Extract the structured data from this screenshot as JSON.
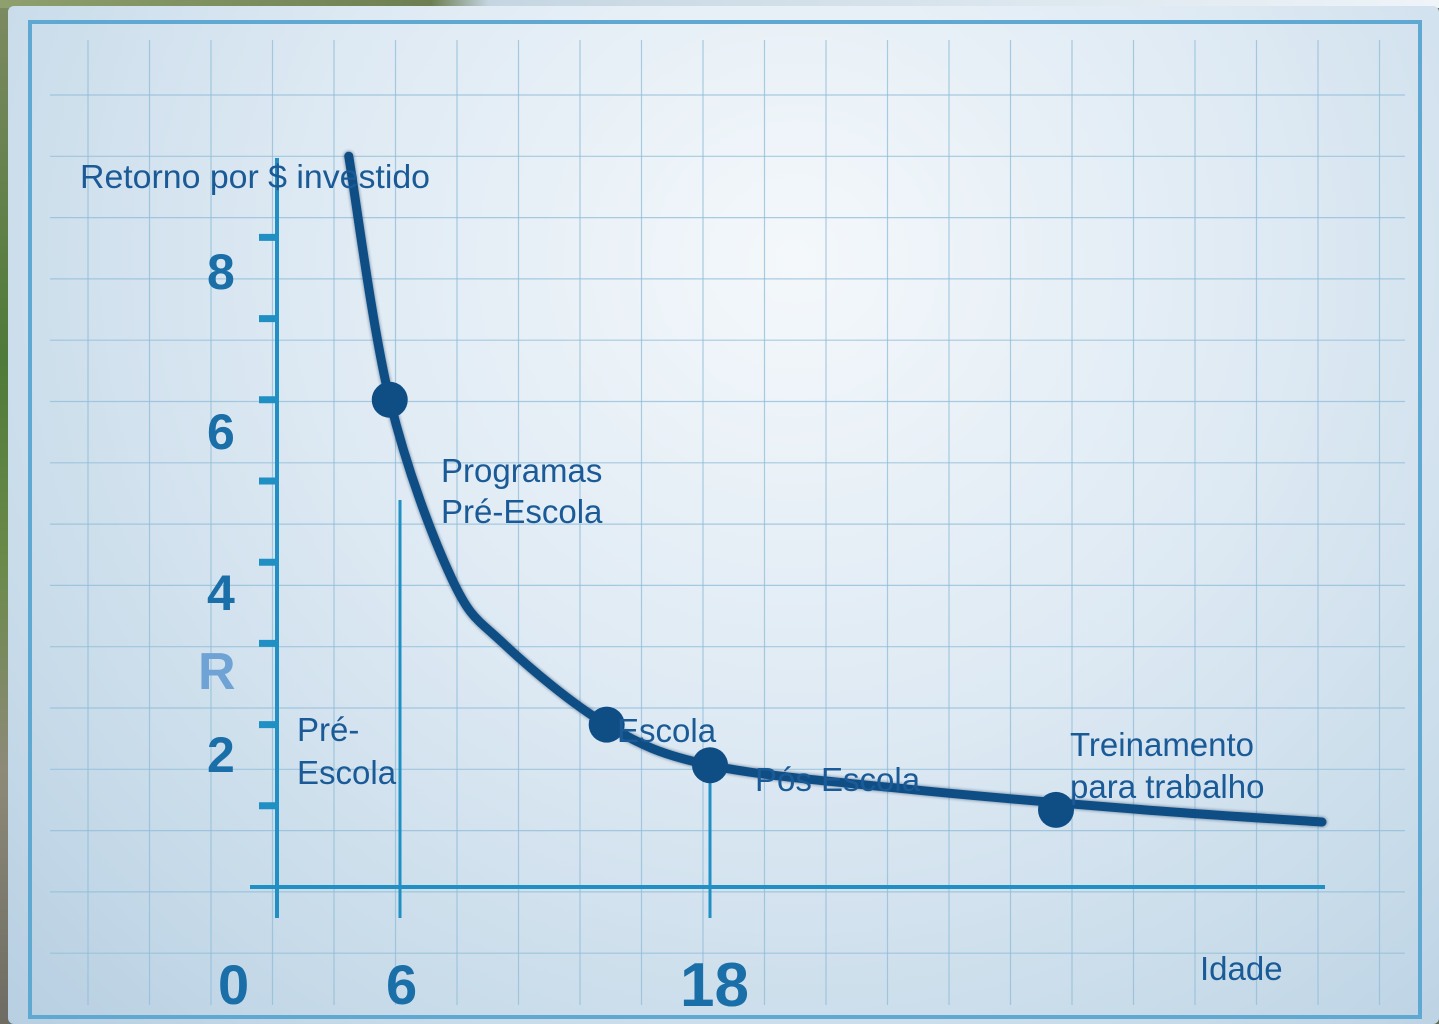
{
  "chart_data": {
    "type": "line",
    "title": "",
    "ylabel": "Retorno por $ investido",
    "xlabel": "Idade",
    "y_axis_marker": "R",
    "ylim": [
      0,
      9
    ],
    "y_ticks": [
      1,
      2,
      3,
      4,
      5,
      6,
      7,
      8
    ],
    "y_tick_labels": [
      "8",
      "6",
      "4",
      "2"
    ],
    "x_tick_labels": [
      "0",
      "6",
      "18"
    ],
    "opportunity_cost_line_y": 3.6,
    "curve": {
      "x": [
        3.5,
        5.5,
        8,
        10,
        14,
        18,
        25,
        35,
        45
      ],
      "y": [
        9.0,
        6.0,
        3.8,
        3.0,
        2.0,
        1.5,
        1.2,
        0.95,
        0.8
      ]
    },
    "points": [
      {
        "label": "Programas Pré-Escola",
        "x": 5.5,
        "y": 6.0
      },
      {
        "label": "Escola",
        "x": 14,
        "y": 2.0
      },
      {
        "label": "Pós Escola",
        "x": 18,
        "y": 1.5
      },
      {
        "label": "Treinamento para trabalho",
        "x": 30,
        "y": 0.95
      }
    ],
    "region_labels": {
      "pre_escola_line1": "Pré-",
      "pre_escola_line2": "Escola",
      "programas_line1": "Programas",
      "programas_line2": "Pré-Escola",
      "escola": "Escola",
      "pos_escola": "Pós Escola",
      "treinamento_line1": "Treinamento",
      "treinamento_line2": "para trabalho"
    },
    "grid": true,
    "colors": {
      "curve": "#0f4d85",
      "axis": "#1f8fc4",
      "tick_numbers": "#1a6fa8",
      "label_text": "#1a5a96",
      "cost_line": "#1f9fd0",
      "grid": "#8fbcd8"
    }
  }
}
